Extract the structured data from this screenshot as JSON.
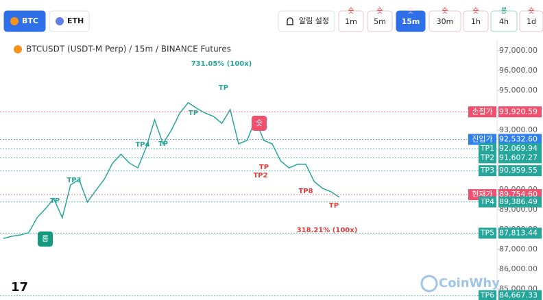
{
  "toolbar": {
    "coins": [
      {
        "label": "BTC",
        "active": true
      },
      {
        "label": "ETH",
        "active": false
      }
    ],
    "alarm": "알림 설정",
    "intervals": [
      {
        "label": "1m",
        "signal": "숏",
        "active": false
      },
      {
        "label": "5m",
        "signal": "숏",
        "active": false
      },
      {
        "label": "15m",
        "signal": "숏",
        "active": true
      },
      {
        "label": "30m",
        "signal": "숏",
        "active": false
      },
      {
        "label": "1h",
        "signal": "숏",
        "active": false
      },
      {
        "label": "4h",
        "signal": "롱",
        "active": false
      },
      {
        "label": "1d",
        "signal": "숏",
        "active": false
      }
    ]
  },
  "chart_data": {
    "type": "line",
    "title": "BTCUSDT (USDT-M Perp) / 15m / BINANCE Futures",
    "watermark": "CoinWhy",
    "ylim": [
      84450,
      97480
    ],
    "yticks": [
      {
        "value": 97000,
        "label": "97,000.00"
      },
      {
        "value": 96000,
        "label": "96,000.00"
      },
      {
        "value": 95000,
        "label": "95,000.00"
      },
      {
        "value": 94000,
        "label": "94,000.00"
      },
      {
        "value": 93000,
        "label": "93,000.00"
      },
      {
        "value": 92000,
        "label": "92,000.00"
      },
      {
        "value": 91000,
        "label": "91,000.00"
      },
      {
        "value": 90000,
        "label": "90,000.00"
      },
      {
        "value": 89000,
        "label": "89,000.00"
      },
      {
        "value": 88000,
        "label": "88,000.00"
      },
      {
        "value": 87000,
        "label": "87,000.00"
      },
      {
        "value": 86000,
        "label": "86,000.00"
      },
      {
        "value": 85000,
        "label": "85,000.00"
      }
    ],
    "series": [
      {
        "color": "#26a69a",
        "values": [
          87550,
          87660,
          87720,
          87830,
          88590,
          89040,
          89550,
          88590,
          90240,
          90520,
          89380,
          89970,
          90520,
          91340,
          91790,
          91340,
          91100,
          92140,
          93520,
          92310,
          93000,
          93860,
          94380,
          94100,
          93860,
          93690,
          93340,
          94030,
          92310,
          92480,
          93520,
          92480,
          92310,
          91450,
          91100,
          91280,
          91280,
          90410,
          90070,
          89900,
          89620
        ]
      }
    ],
    "levels": {
      "names": [
        "손절가",
        "진입가",
        "TP1",
        "TP2",
        "TP3",
        "현재가",
        "TP4",
        "TP5",
        "TP6"
      ],
      "values": [
        93920.59,
        92532.6,
        92069.94,
        91607.27,
        90959.55,
        89754.6,
        89386.49,
        87813.44,
        84667.33
      ],
      "value_labels": [
        "93,920.59",
        "92,532.60",
        "92,069.94",
        "91,607.27",
        "90,959.55",
        "89,754.60",
        "89,386.49",
        "87,813.44",
        "84,667.33"
      ],
      "colors": [
        "#f0506e",
        "#2f80ed",
        "#26a69a",
        "#26a69a",
        "#26a69a",
        "#f0506e",
        "#26a69a",
        "#26a69a",
        "#26a69a"
      ]
    },
    "annotations": [
      {
        "text": "731.05% (100x)",
        "color": "#26a69a"
      },
      {
        "text": "TP",
        "color": "#26a69a"
      },
      {
        "text": "TP",
        "color": "#26a69a"
      },
      {
        "text": "TP4",
        "color": "#26a69a"
      },
      {
        "text": "TP",
        "color": "#26a69a"
      },
      {
        "text": "TP3",
        "color": "#26a69a"
      },
      {
        "text": "TP",
        "color": "#26a69a"
      },
      {
        "text": "TP2",
        "color": "#e53935"
      },
      {
        "text": "TP",
        "color": "#e53935"
      },
      {
        "text": "TP8",
        "color": "#e53935"
      },
      {
        "text": "TP",
        "color": "#e53935"
      },
      {
        "text": "318.21% (100x)",
        "color": "#e53935"
      }
    ],
    "badges": [
      {
        "text": "롱",
        "color": "#159a7e"
      },
      {
        "text": "숏",
        "color": "#f0506e"
      }
    ]
  }
}
